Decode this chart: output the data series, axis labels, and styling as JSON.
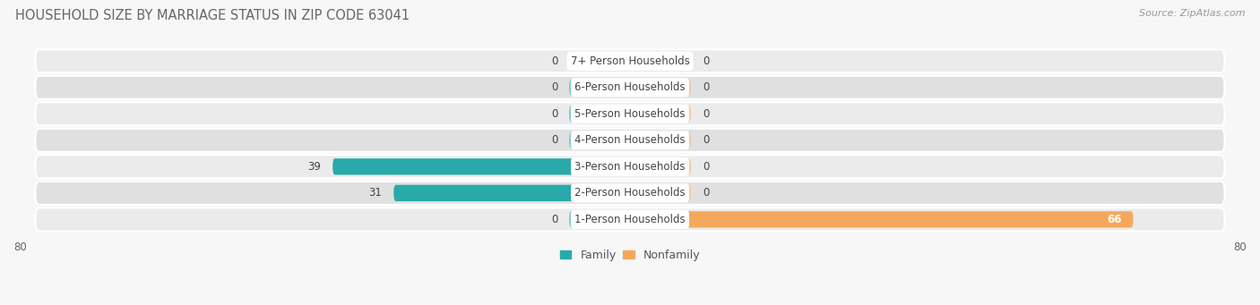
{
  "title": "HOUSEHOLD SIZE BY MARRIAGE STATUS IN ZIP CODE 63041",
  "source": "Source: ZipAtlas.com",
  "categories": [
    "1-Person Households",
    "2-Person Households",
    "3-Person Households",
    "4-Person Households",
    "5-Person Households",
    "6-Person Households",
    "7+ Person Households"
  ],
  "family_values": [
    0,
    31,
    39,
    0,
    0,
    0,
    0
  ],
  "nonfamily_values": [
    66,
    0,
    0,
    0,
    0,
    0,
    0
  ],
  "family_color_light": "#7ecfcf",
  "family_color_dark": "#29a9a9",
  "nonfamily_color_light": "#f5c9a0",
  "nonfamily_color_orange": "#f5a85c",
  "xlim": 80,
  "title_fontsize": 10.5,
  "label_fontsize": 8.5,
  "value_fontsize": 8.5,
  "source_fontsize": 8,
  "legend_fontsize": 9,
  "row_bg_light": "#ebebeb",
  "row_bg_dark": "#e0e0e0",
  "fig_bg": "#f7f7f7",
  "stub_size": 8
}
